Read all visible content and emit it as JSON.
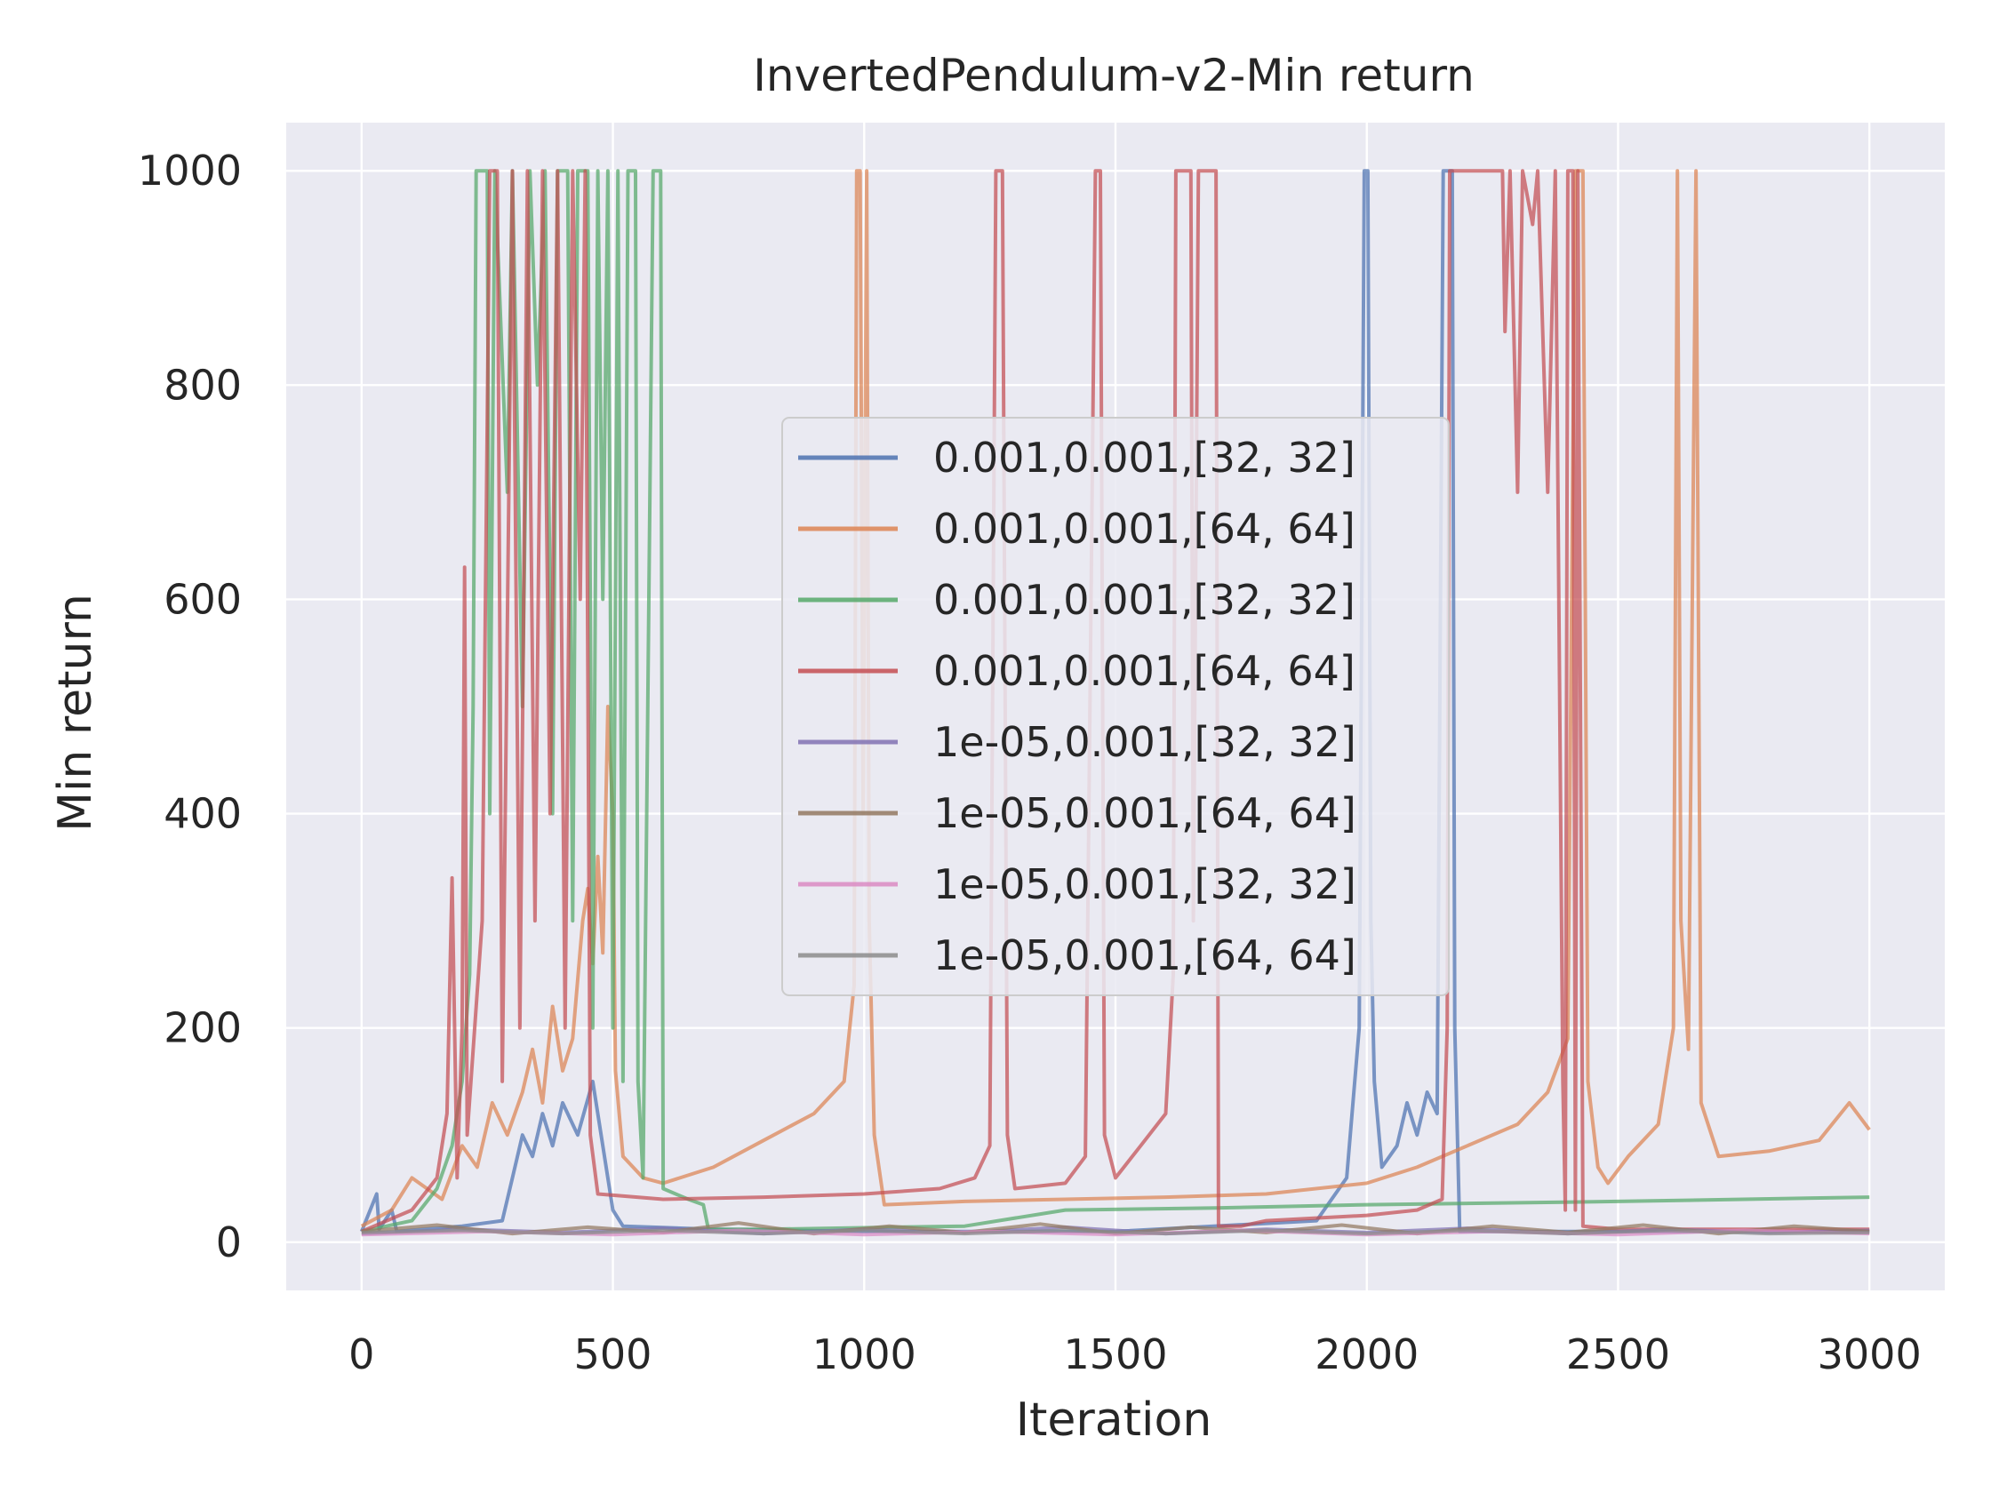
{
  "chart_data": {
    "type": "line",
    "title": "InvertedPendulum-v2-Min return",
    "xlabel": "Iteration",
    "ylabel": "Min return",
    "xlim": [
      -150,
      3150
    ],
    "ylim": [
      -45,
      1045
    ],
    "x_ticks": [
      0,
      500,
      1000,
      1500,
      2000,
      2500,
      3000
    ],
    "y_ticks": [
      0,
      200,
      400,
      600,
      800,
      1000
    ],
    "x_tick_labels": [
      "0",
      "500",
      "1000",
      "1500",
      "2000",
      "2500",
      "3000"
    ],
    "y_tick_labels": [
      "0",
      "200",
      "400",
      "600",
      "800",
      "1000"
    ],
    "grid": true,
    "legend_position": "center",
    "series": [
      {
        "name": "0.001,0.001,[32, 32]",
        "color": "#4c72b0",
        "points": [
          [
            0,
            10
          ],
          [
            30,
            45
          ],
          [
            35,
            12
          ],
          [
            60,
            30
          ],
          [
            70,
            10
          ],
          [
            200,
            15
          ],
          [
            280,
            20
          ],
          [
            300,
            60
          ],
          [
            320,
            100
          ],
          [
            340,
            80
          ],
          [
            360,
            120
          ],
          [
            380,
            90
          ],
          [
            400,
            130
          ],
          [
            430,
            100
          ],
          [
            460,
            150
          ],
          [
            480,
            90
          ],
          [
            500,
            30
          ],
          [
            520,
            15
          ],
          [
            700,
            12
          ],
          [
            1000,
            10
          ],
          [
            1500,
            10
          ],
          [
            1900,
            20
          ],
          [
            1960,
            60
          ],
          [
            1985,
            200
          ],
          [
            1995,
            1000
          ],
          [
            2002,
            1000
          ],
          [
            2008,
            300
          ],
          [
            2015,
            150
          ],
          [
            2030,
            70
          ],
          [
            2060,
            90
          ],
          [
            2080,
            130
          ],
          [
            2100,
            100
          ],
          [
            2120,
            140
          ],
          [
            2140,
            120
          ],
          [
            2148,
            700
          ],
          [
            2152,
            1000
          ],
          [
            2170,
            1000
          ],
          [
            2175,
            200
          ],
          [
            2185,
            10
          ],
          [
            2300,
            10
          ],
          [
            2700,
            10
          ],
          [
            3000,
            10
          ]
        ]
      },
      {
        "name": "0.001,0.001,[64, 64]",
        "color": "#dd8452",
        "points": [
          [
            0,
            15
          ],
          [
            60,
            30
          ],
          [
            100,
            60
          ],
          [
            160,
            40
          ],
          [
            200,
            90
          ],
          [
            230,
            70
          ],
          [
            260,
            130
          ],
          [
            290,
            100
          ],
          [
            320,
            140
          ],
          [
            340,
            180
          ],
          [
            360,
            130
          ],
          [
            380,
            220
          ],
          [
            400,
            160
          ],
          [
            420,
            190
          ],
          [
            440,
            300
          ],
          [
            450,
            330
          ],
          [
            460,
            260
          ],
          [
            470,
            360
          ],
          [
            480,
            270
          ],
          [
            490,
            500
          ],
          [
            500,
            400
          ],
          [
            505,
            160
          ],
          [
            520,
            80
          ],
          [
            560,
            60
          ],
          [
            600,
            55
          ],
          [
            700,
            70
          ],
          [
            800,
            95
          ],
          [
            900,
            120
          ],
          [
            960,
            150
          ],
          [
            980,
            240
          ],
          [
            985,
            1000
          ],
          [
            992,
            1000
          ],
          [
            998,
            400
          ],
          [
            1005,
            1000
          ],
          [
            1010,
            300
          ],
          [
            1020,
            100
          ],
          [
            1040,
            35
          ],
          [
            1200,
            38
          ],
          [
            1400,
            40
          ],
          [
            1600,
            42
          ],
          [
            1800,
            45
          ],
          [
            2000,
            55
          ],
          [
            2100,
            70
          ],
          [
            2200,
            90
          ],
          [
            2300,
            110
          ],
          [
            2360,
            140
          ],
          [
            2400,
            190
          ],
          [
            2415,
            1000
          ],
          [
            2430,
            1000
          ],
          [
            2440,
            150
          ],
          [
            2460,
            70
          ],
          [
            2480,
            55
          ],
          [
            2520,
            80
          ],
          [
            2580,
            110
          ],
          [
            2610,
            200
          ],
          [
            2618,
            1000
          ],
          [
            2625,
            300
          ],
          [
            2640,
            180
          ],
          [
            2655,
            1000
          ],
          [
            2665,
            130
          ],
          [
            2700,
            80
          ],
          [
            2800,
            85
          ],
          [
            2900,
            95
          ],
          [
            2960,
            130
          ],
          [
            3000,
            105
          ]
        ]
      },
      {
        "name": "0.001,0.001,[32, 32]",
        "color": "#55a868",
        "points": [
          [
            0,
            10
          ],
          [
            100,
            20
          ],
          [
            150,
            50
          ],
          [
            180,
            90
          ],
          [
            200,
            150
          ],
          [
            215,
            250
          ],
          [
            222,
            500
          ],
          [
            228,
            1000
          ],
          [
            250,
            1000
          ],
          [
            255,
            400
          ],
          [
            265,
            1000
          ],
          [
            290,
            700
          ],
          [
            300,
            1000
          ],
          [
            320,
            500
          ],
          [
            335,
            1000
          ],
          [
            350,
            800
          ],
          [
            365,
            1000
          ],
          [
            380,
            400
          ],
          [
            390,
            1000
          ],
          [
            410,
            1000
          ],
          [
            420,
            300
          ],
          [
            430,
            1000
          ],
          [
            450,
            1000
          ],
          [
            460,
            200
          ],
          [
            470,
            1000
          ],
          [
            480,
            600
          ],
          [
            490,
            1000
          ],
          [
            500,
            200
          ],
          [
            510,
            1000
          ],
          [
            520,
            150
          ],
          [
            530,
            1000
          ],
          [
            545,
            1000
          ],
          [
            550,
            150
          ],
          [
            560,
            60
          ],
          [
            580,
            1000
          ],
          [
            595,
            1000
          ],
          [
            600,
            50
          ],
          [
            650,
            40
          ],
          [
            680,
            35
          ],
          [
            690,
            12
          ],
          [
            800,
            12
          ],
          [
            1200,
            15
          ],
          [
            1400,
            30
          ],
          [
            1700,
            32
          ],
          [
            2000,
            35
          ],
          [
            2500,
            38
          ],
          [
            3000,
            42
          ]
        ]
      },
      {
        "name": "0.001,0.001,[64, 64]",
        "color": "#c44e52",
        "points": [
          [
            0,
            10
          ],
          [
            100,
            30
          ],
          [
            150,
            60
          ],
          [
            170,
            120
          ],
          [
            180,
            340
          ],
          [
            190,
            60
          ],
          [
            200,
            200
          ],
          [
            205,
            630
          ],
          [
            210,
            100
          ],
          [
            240,
            300
          ],
          [
            255,
            1000
          ],
          [
            270,
            1000
          ],
          [
            280,
            150
          ],
          [
            300,
            1000
          ],
          [
            315,
            200
          ],
          [
            330,
            1000
          ],
          [
            345,
            300
          ],
          [
            360,
            1000
          ],
          [
            375,
            400
          ],
          [
            390,
            1000
          ],
          [
            405,
            200
          ],
          [
            420,
            1000
          ],
          [
            435,
            600
          ],
          [
            445,
            1000
          ],
          [
            455,
            100
          ],
          [
            470,
            45
          ],
          [
            600,
            40
          ],
          [
            800,
            42
          ],
          [
            1000,
            45
          ],
          [
            1150,
            50
          ],
          [
            1220,
            60
          ],
          [
            1250,
            90
          ],
          [
            1262,
            1000
          ],
          [
            1275,
            1000
          ],
          [
            1285,
            100
          ],
          [
            1300,
            50
          ],
          [
            1400,
            55
          ],
          [
            1440,
            80
          ],
          [
            1460,
            1000
          ],
          [
            1470,
            1000
          ],
          [
            1478,
            100
          ],
          [
            1500,
            60
          ],
          [
            1550,
            90
          ],
          [
            1600,
            120
          ],
          [
            1615,
            250
          ],
          [
            1620,
            1000
          ],
          [
            1650,
            1000
          ],
          [
            1655,
            300
          ],
          [
            1665,
            1000
          ],
          [
            1700,
            1000
          ],
          [
            1705,
            15
          ],
          [
            1750,
            15
          ],
          [
            1800,
            20
          ],
          [
            2000,
            25
          ],
          [
            2100,
            30
          ],
          [
            2150,
            40
          ],
          [
            2160,
            200
          ],
          [
            2165,
            1000
          ],
          [
            2270,
            1000
          ],
          [
            2275,
            850
          ],
          [
            2285,
            1000
          ],
          [
            2300,
            700
          ],
          [
            2310,
            1000
          ],
          [
            2330,
            950
          ],
          [
            2340,
            1000
          ],
          [
            2360,
            700
          ],
          [
            2375,
            1000
          ],
          [
            2390,
            150
          ],
          [
            2395,
            30
          ],
          [
            2400,
            1000
          ],
          [
            2410,
            1000
          ],
          [
            2415,
            30
          ],
          [
            2420,
            1000
          ],
          [
            2430,
            15
          ],
          [
            2500,
            12
          ],
          [
            3000,
            12
          ]
        ]
      },
      {
        "name": "1e-05,0.001,[32, 32]",
        "color": "#8172b3",
        "points": [
          [
            0,
            8
          ],
          [
            200,
            12
          ],
          [
            400,
            9
          ],
          [
            600,
            13
          ],
          [
            800,
            8
          ],
          [
            1000,
            12
          ],
          [
            1200,
            9
          ],
          [
            1400,
            14
          ],
          [
            1600,
            8
          ],
          [
            1800,
            12
          ],
          [
            2000,
            9
          ],
          [
            2200,
            13
          ],
          [
            2400,
            8
          ],
          [
            2600,
            12
          ],
          [
            2800,
            9
          ],
          [
            3000,
            11
          ]
        ]
      },
      {
        "name": "1e-05,0.001,[64, 64]",
        "color": "#937860",
        "points": [
          [
            0,
            10
          ],
          [
            150,
            16
          ],
          [
            300,
            8
          ],
          [
            450,
            14
          ],
          [
            600,
            9
          ],
          [
            750,
            18
          ],
          [
            900,
            8
          ],
          [
            1050,
            15
          ],
          [
            1200,
            9
          ],
          [
            1350,
            17
          ],
          [
            1500,
            8
          ],
          [
            1650,
            14
          ],
          [
            1800,
            9
          ],
          [
            1950,
            16
          ],
          [
            2100,
            8
          ],
          [
            2250,
            15
          ],
          [
            2400,
            9
          ],
          [
            2550,
            16
          ],
          [
            2700,
            8
          ],
          [
            2850,
            15
          ],
          [
            3000,
            10
          ]
        ]
      },
      {
        "name": "1e-05,0.001,[32, 32]",
        "color": "#da8bc3",
        "points": [
          [
            0,
            7
          ],
          [
            250,
            10
          ],
          [
            500,
            7
          ],
          [
            750,
            11
          ],
          [
            1000,
            7
          ],
          [
            1250,
            10
          ],
          [
            1500,
            7
          ],
          [
            1750,
            11
          ],
          [
            2000,
            7
          ],
          [
            2250,
            10
          ],
          [
            2500,
            7
          ],
          [
            2750,
            11
          ],
          [
            3000,
            8
          ]
        ]
      },
      {
        "name": "1e-05,0.001,[64, 64]",
        "color": "#8c8c8c",
        "points": [
          [
            0,
            9
          ],
          [
            200,
            11
          ],
          [
            400,
            8
          ],
          [
            600,
            11
          ],
          [
            800,
            8
          ],
          [
            1000,
            11
          ],
          [
            1200,
            8
          ],
          [
            1400,
            11
          ],
          [
            1600,
            8
          ],
          [
            1800,
            11
          ],
          [
            2000,
            8
          ],
          [
            2200,
            11
          ],
          [
            2400,
            8
          ],
          [
            2600,
            11
          ],
          [
            2800,
            8
          ],
          [
            3000,
            9
          ]
        ]
      }
    ]
  }
}
